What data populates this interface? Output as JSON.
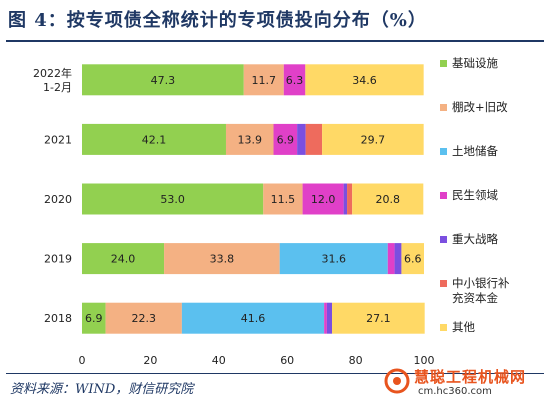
{
  "title": "图 4：按专项债全称统计的专项债投向分布（%）",
  "source": "资料来源：WIND，财信研究院",
  "watermark": {
    "name": "慧聪工程机械网",
    "url": "cm.hc360.com"
  },
  "chart_data": {
    "type": "bar",
    "orientation": "horizontal",
    "stacked": true,
    "categories": [
      "2022年\n1-2月",
      "2021",
      "2020",
      "2019",
      "2018"
    ],
    "xlim": [
      0,
      100
    ],
    "xticks": [
      0,
      20,
      40,
      60,
      80,
      100
    ],
    "legend_position": "right",
    "series": [
      {
        "name": "基础设施",
        "color": "#92d050",
        "values": [
          47.3,
          42.1,
          53.0,
          24.0,
          6.9
        ],
        "labels": [
          "47.3",
          "42.1",
          "53.0",
          "24.0",
          "6.9"
        ]
      },
      {
        "name": "棚改+旧改",
        "color": "#f4b183",
        "values": [
          11.7,
          13.9,
          11.5,
          33.8,
          22.3
        ],
        "labels": [
          "11.7",
          "13.9",
          "11.5",
          "33.8",
          "22.3"
        ]
      },
      {
        "name": "土地储备",
        "color": "#5bc0ef",
        "values": [
          0,
          0,
          0,
          31.6,
          41.6
        ],
        "labels": [
          "",
          "",
          "",
          "31.6",
          "41.6"
        ]
      },
      {
        "name": "民生领域",
        "color": "#e040c8",
        "values": [
          6.3,
          6.9,
          12.0,
          2.0,
          0.8
        ],
        "labels": [
          "6.3",
          "6.9",
          "12.0",
          "",
          ""
        ]
      },
      {
        "name": "重大战略",
        "color": "#7b4fe0",
        "values": [
          0,
          2.5,
          1.0,
          2.0,
          1.5
        ],
        "labels": [
          "",
          "",
          "",
          "",
          ""
        ]
      },
      {
        "name": "中小银行补\n充资本金",
        "color": "#ee6b5d",
        "values": [
          0,
          4.8,
          1.5,
          0,
          0
        ],
        "labels": [
          "",
          "",
          "",
          "",
          ""
        ]
      },
      {
        "name": "其他",
        "color": "#ffd966",
        "values": [
          34.6,
          29.7,
          20.8,
          6.6,
          27.1
        ],
        "labels": [
          "34.6",
          "29.7",
          "20.8",
          "6.6",
          "27.1"
        ]
      }
    ]
  }
}
